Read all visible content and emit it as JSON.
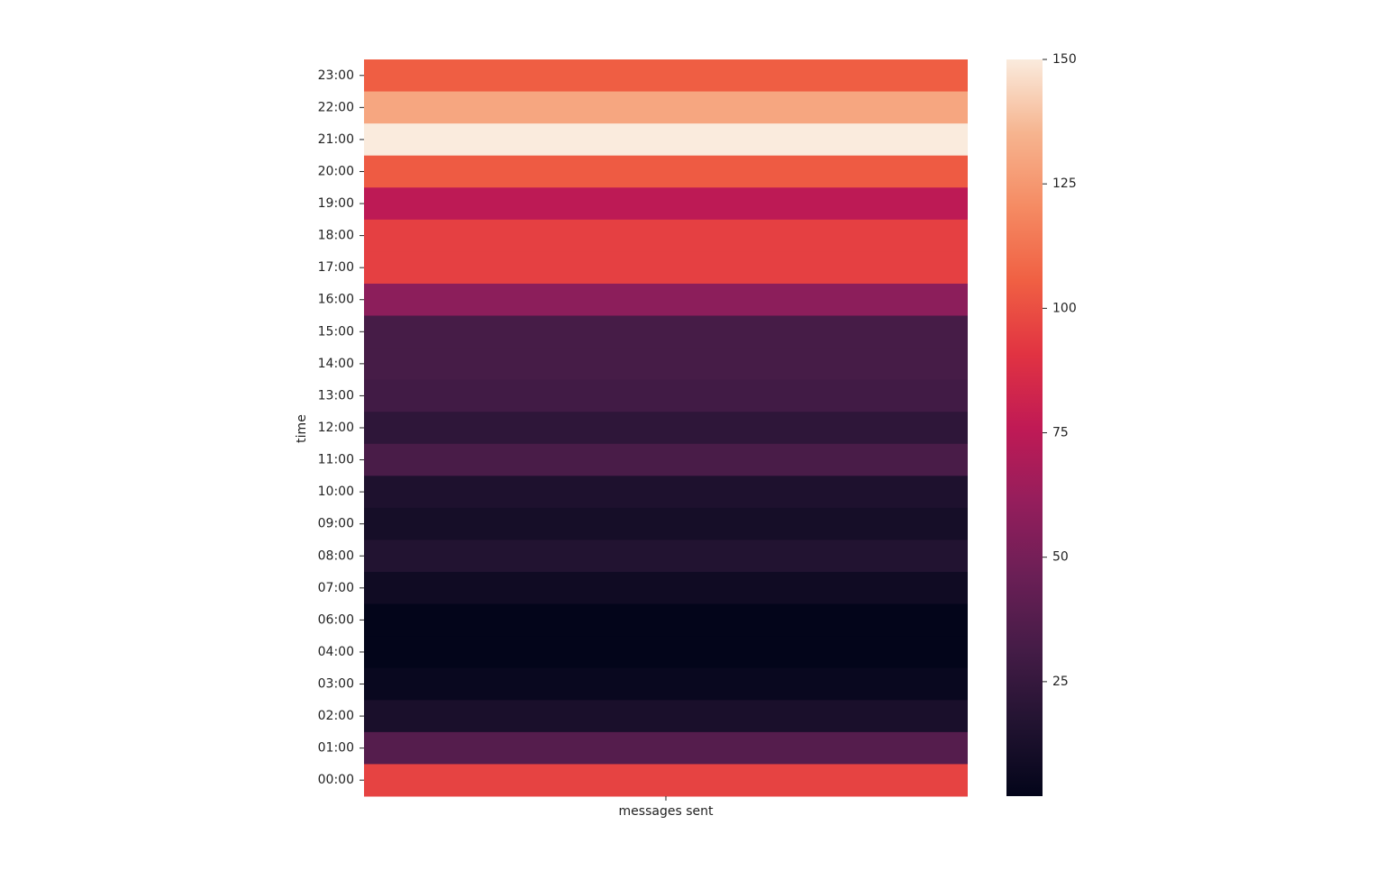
{
  "chart_data": {
    "type": "heatmap",
    "y_label": "time",
    "x_categories": [
      "messages sent"
    ],
    "y_categories": [
      "23:00",
      "22:00",
      "21:00",
      "20:00",
      "19:00",
      "18:00",
      "17:00",
      "16:00",
      "15:00",
      "14:00",
      "13:00",
      "12:00",
      "11:00",
      "10:00",
      "09:00",
      "08:00",
      "07:00",
      "06:00",
      "04:00",
      "03:00",
      "02:00",
      "01:00",
      "00:00"
    ],
    "values": [
      105,
      130,
      150,
      104,
      75,
      95,
      95,
      58,
      32,
      32,
      30,
      22,
      33,
      15,
      11,
      17,
      8,
      2,
      2,
      5,
      13,
      38,
      96
    ],
    "clim": [
      2,
      150
    ],
    "cticks": [
      25,
      50,
      75,
      100,
      125,
      150
    ],
    "colormap": [
      "#03051a",
      "#221331",
      "#451c47",
      "#6b1f56",
      "#951e5c",
      "#c01a55",
      "#e13342",
      "#f06043",
      "#f58b63",
      "#f6b48f",
      "#faebdd"
    ]
  }
}
